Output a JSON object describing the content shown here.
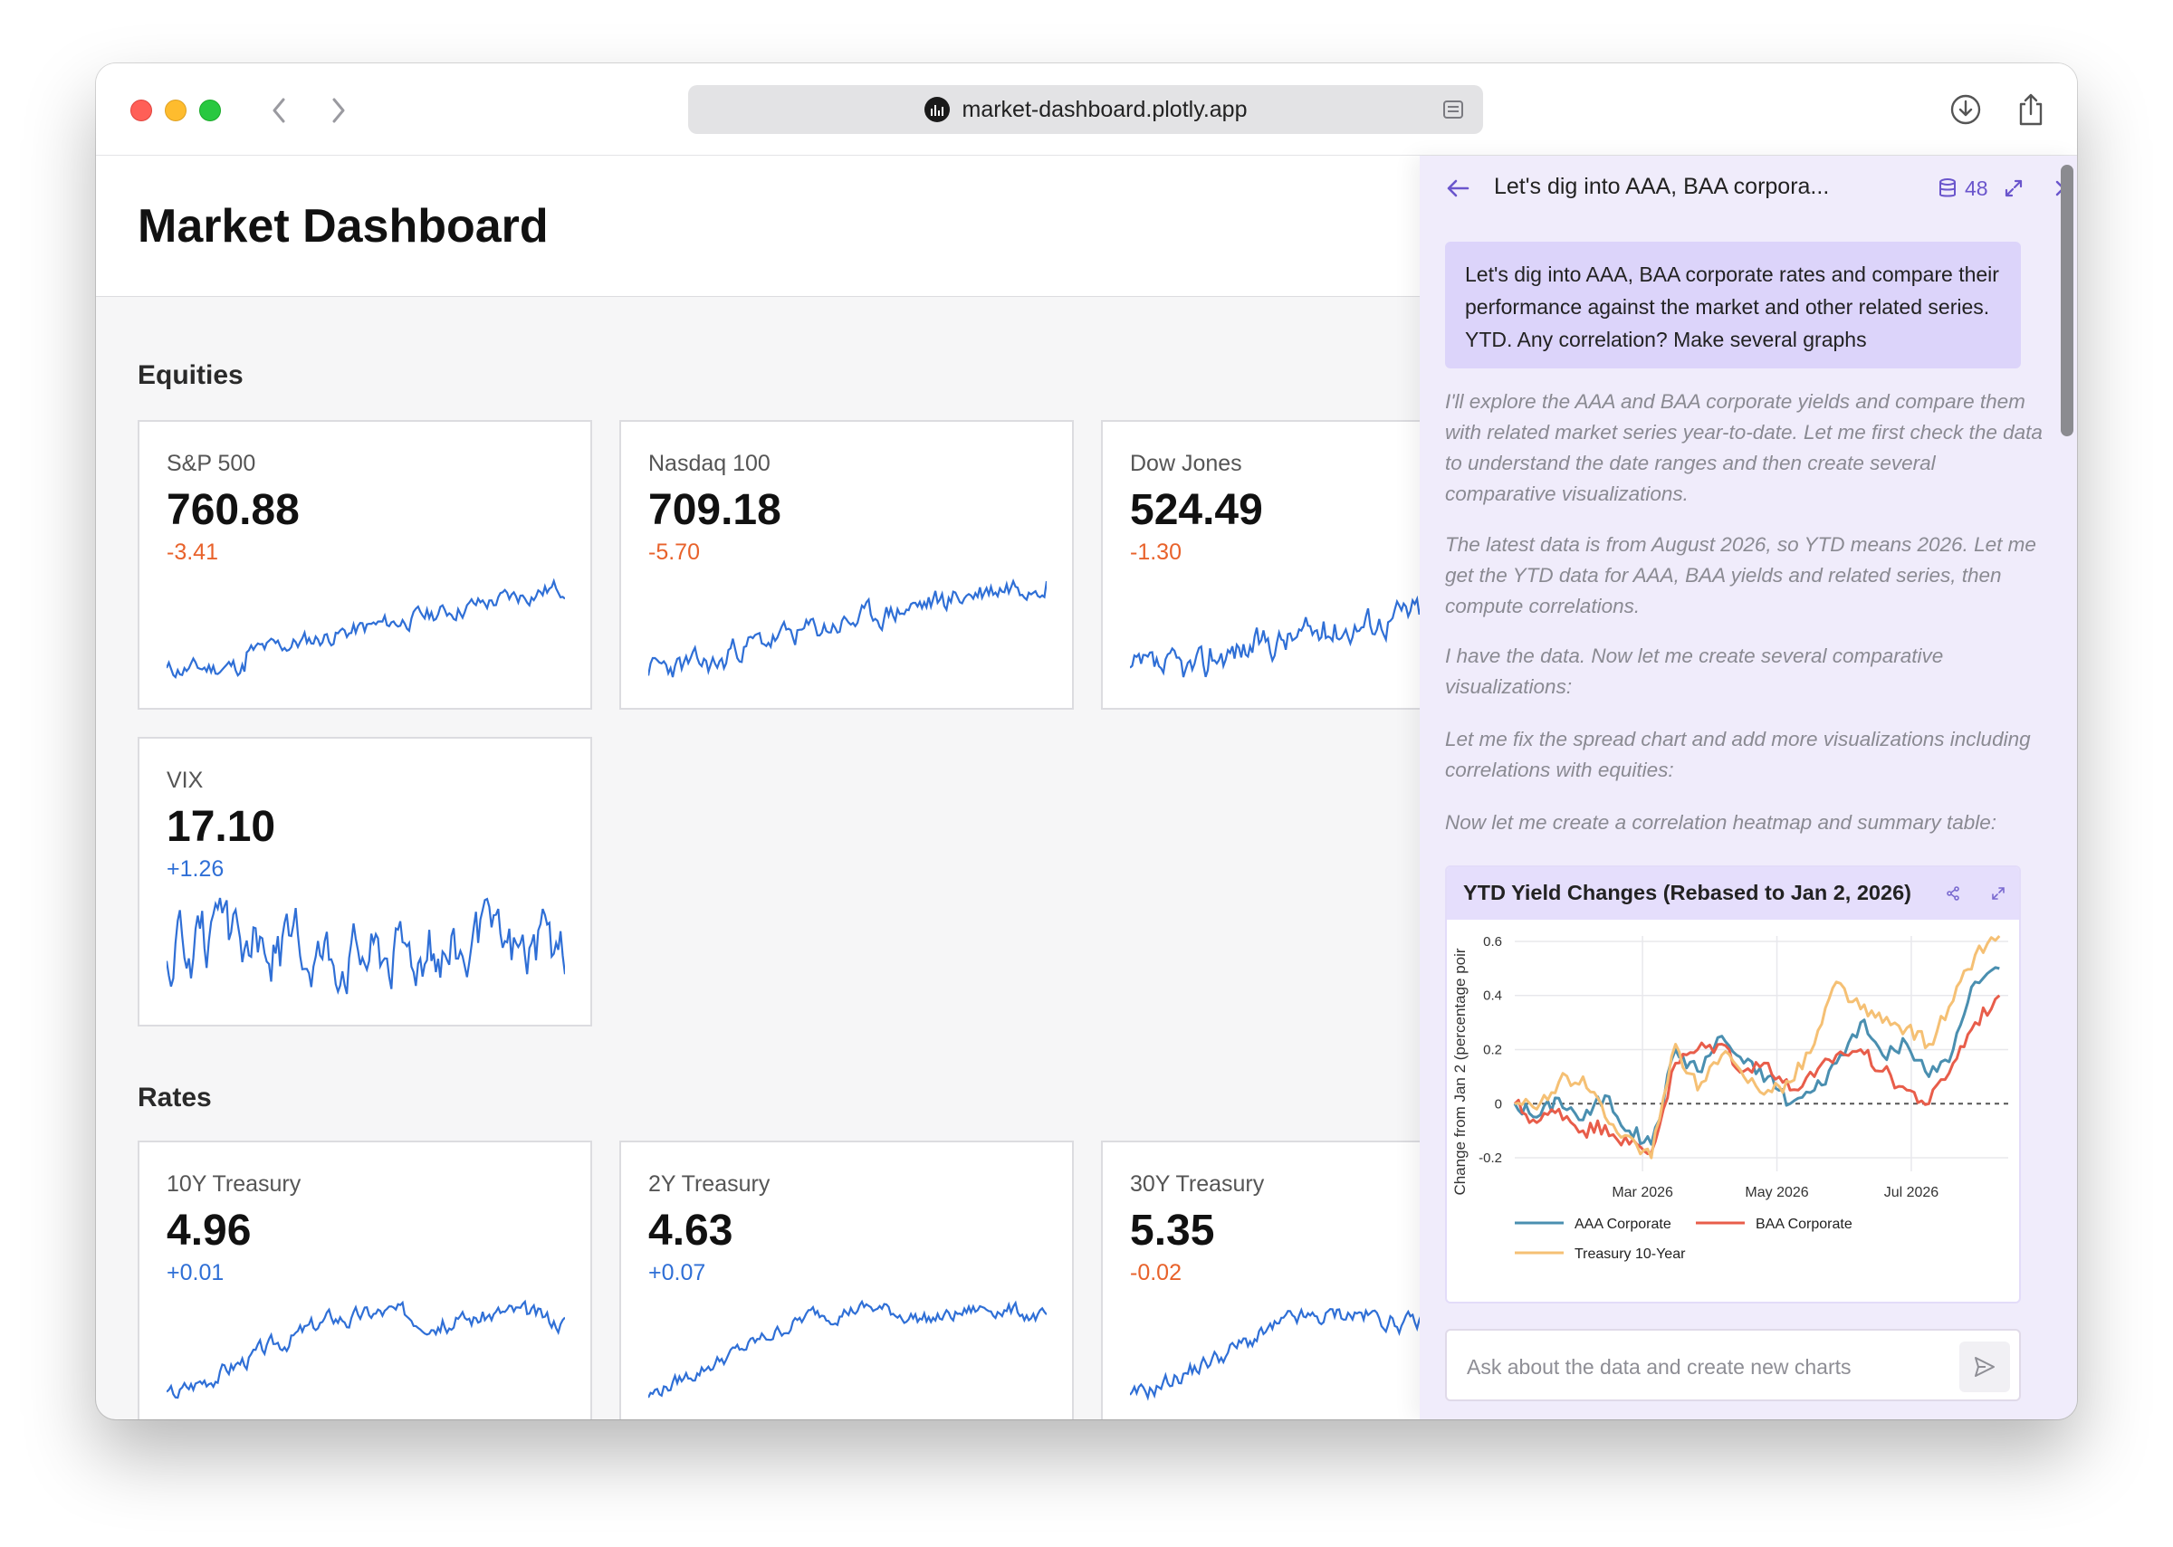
{
  "browser": {
    "url": "market-dashboard.plotly.app"
  },
  "page": {
    "title": "Market Dashboard"
  },
  "sections": {
    "equities": "Equities",
    "rates": "Rates"
  },
  "cards": [
    {
      "label": "S&P 500",
      "value": "760.88",
      "change": "-3.41",
      "direction": "neg"
    },
    {
      "label": "Nasdaq 100",
      "value": "709.18",
      "change": "-5.70",
      "direction": "neg"
    },
    {
      "label": "Dow Jones",
      "value": "524.49",
      "change": "-1.30",
      "direction": "neg"
    },
    {
      "label": "VIX",
      "value": "17.10",
      "change": "+1.26",
      "direction": "pos"
    },
    {
      "label": "10Y Treasury",
      "value": "4.96",
      "change": "+0.01",
      "direction": "pos"
    },
    {
      "label": "2Y Treasury",
      "value": "4.63",
      "change": "+0.07",
      "direction": "pos"
    },
    {
      "label": "30Y Treasury",
      "value": "5.35",
      "change": "-0.02",
      "direction": "neg"
    }
  ],
  "chat": {
    "title": "Let's dig into AAA, BAA corpora...",
    "dataset_count": "48",
    "user_message": "Let's dig into AAA, BAA corporate rates and compare their performance against the market and other related series. YTD. Any correlation? Make several graphs",
    "assistant_messages": [
      "I'll explore the AAA and BAA corporate yields and compare them with related market series year-to-date. Let me first check the data to understand the date ranges and then create several comparative visualizations.",
      "The latest data is from August 2026, so YTD means 2026. Let me get the YTD data for AAA, BAA yields and related series, then compute correlations.",
      "I have the data. Now let me create several comparative visualizations:",
      "Let me fix the spread chart and add more visualizations including correlations with equities:",
      "Now let me create a correlation heatmap and summary table:"
    ],
    "input_placeholder": "Ask about the data and create new charts"
  },
  "colors": {
    "accent": "#6a55cc",
    "negative": "#e8622b",
    "positive": "#2f6fd6",
    "sparkline": "#2f6fd6"
  },
  "chart_data": {
    "type": "line",
    "title": "YTD Yield Changes (Rebased to Jan 2, 2026)",
    "ylabel": "Change from Jan 2 (percentage poir",
    "xlabel": "",
    "ylim": [
      -0.25,
      0.62
    ],
    "y_ticks": [
      "0.6",
      "0.4",
      "0.2",
      "0",
      "-0.2"
    ],
    "x_ticks": [
      "Mar 2026",
      "May 2026",
      "Jul 2026"
    ],
    "x_dates": [
      "2026-01-02",
      "2026-01-12",
      "2026-01-22",
      "2026-02-02",
      "2026-02-12",
      "2026-02-23",
      "2026-03-05",
      "2026-03-16",
      "2026-03-26",
      "2026-04-06",
      "2026-04-16",
      "2026-04-27",
      "2026-05-07",
      "2026-05-18",
      "2026-05-28",
      "2026-06-08",
      "2026-06-18",
      "2026-06-29",
      "2026-07-09",
      "2026-07-20",
      "2026-07-30",
      "2026-08-10"
    ],
    "legend_position": "bottom",
    "series": [
      {
        "name": "AAA Corporate",
        "color": "#4a8fb0",
        "values": [
          0.0,
          -0.05,
          0.02,
          -0.06,
          0.03,
          -0.1,
          -0.15,
          0.2,
          0.12,
          0.25,
          0.15,
          0.1,
          0.0,
          0.05,
          0.15,
          0.3,
          0.18,
          0.22,
          0.1,
          0.2,
          0.45,
          0.5
        ]
      },
      {
        "name": "BAA Corporate",
        "color": "#e85d4a",
        "values": [
          0.0,
          -0.07,
          -0.02,
          -0.1,
          -0.08,
          -0.15,
          -0.18,
          0.15,
          0.2,
          0.22,
          0.12,
          0.15,
          0.05,
          0.1,
          0.18,
          0.2,
          0.12,
          0.05,
          0.0,
          0.15,
          0.3,
          0.4
        ]
      },
      {
        "name": "Treasury 10-Year",
        "color": "#f5c074",
        "values": [
          0.0,
          -0.02,
          0.08,
          0.1,
          -0.05,
          -0.12,
          -0.2,
          0.22,
          0.05,
          0.18,
          0.1,
          0.05,
          0.08,
          0.22,
          0.45,
          0.35,
          0.3,
          0.28,
          0.22,
          0.38,
          0.55,
          0.62
        ]
      }
    ]
  }
}
